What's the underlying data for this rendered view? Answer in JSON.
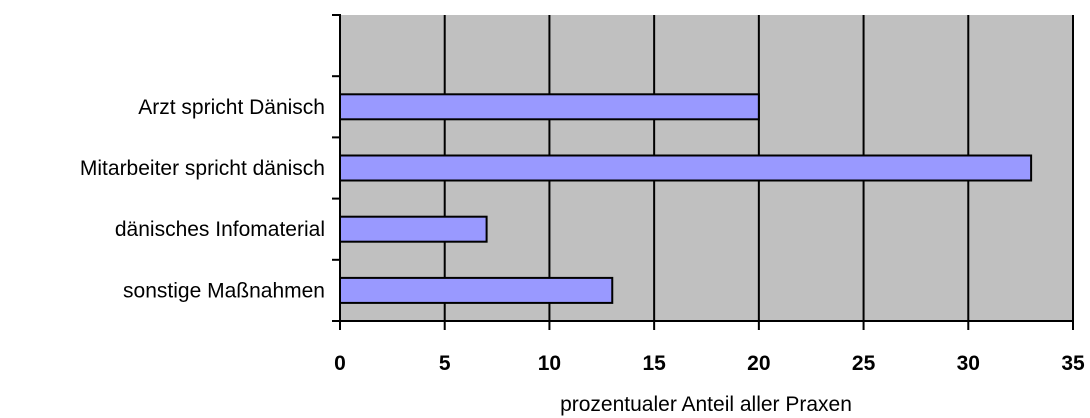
{
  "chart_data": {
    "type": "bar",
    "orientation": "horizontal",
    "title": "",
    "categories": [
      "Arzt spricht Dänisch",
      "Mitarbeiter spricht dänisch",
      "dänisches Infomaterial",
      "sonstige Maßnahmen"
    ],
    "values": [
      20,
      33,
      7,
      13
    ],
    "xlabel": "prozentualer Anteil aller Praxen",
    "ylabel": "",
    "xlim": [
      0,
      35
    ],
    "xticks": [
      0,
      5,
      10,
      15,
      20,
      25,
      30,
      35
    ],
    "grid": true,
    "legend": "none",
    "colors": {
      "plot_background": "#c0c0c0",
      "bar_fill": "#9999ff",
      "bar_stroke": "#000000",
      "gridline": "#000000"
    }
  }
}
